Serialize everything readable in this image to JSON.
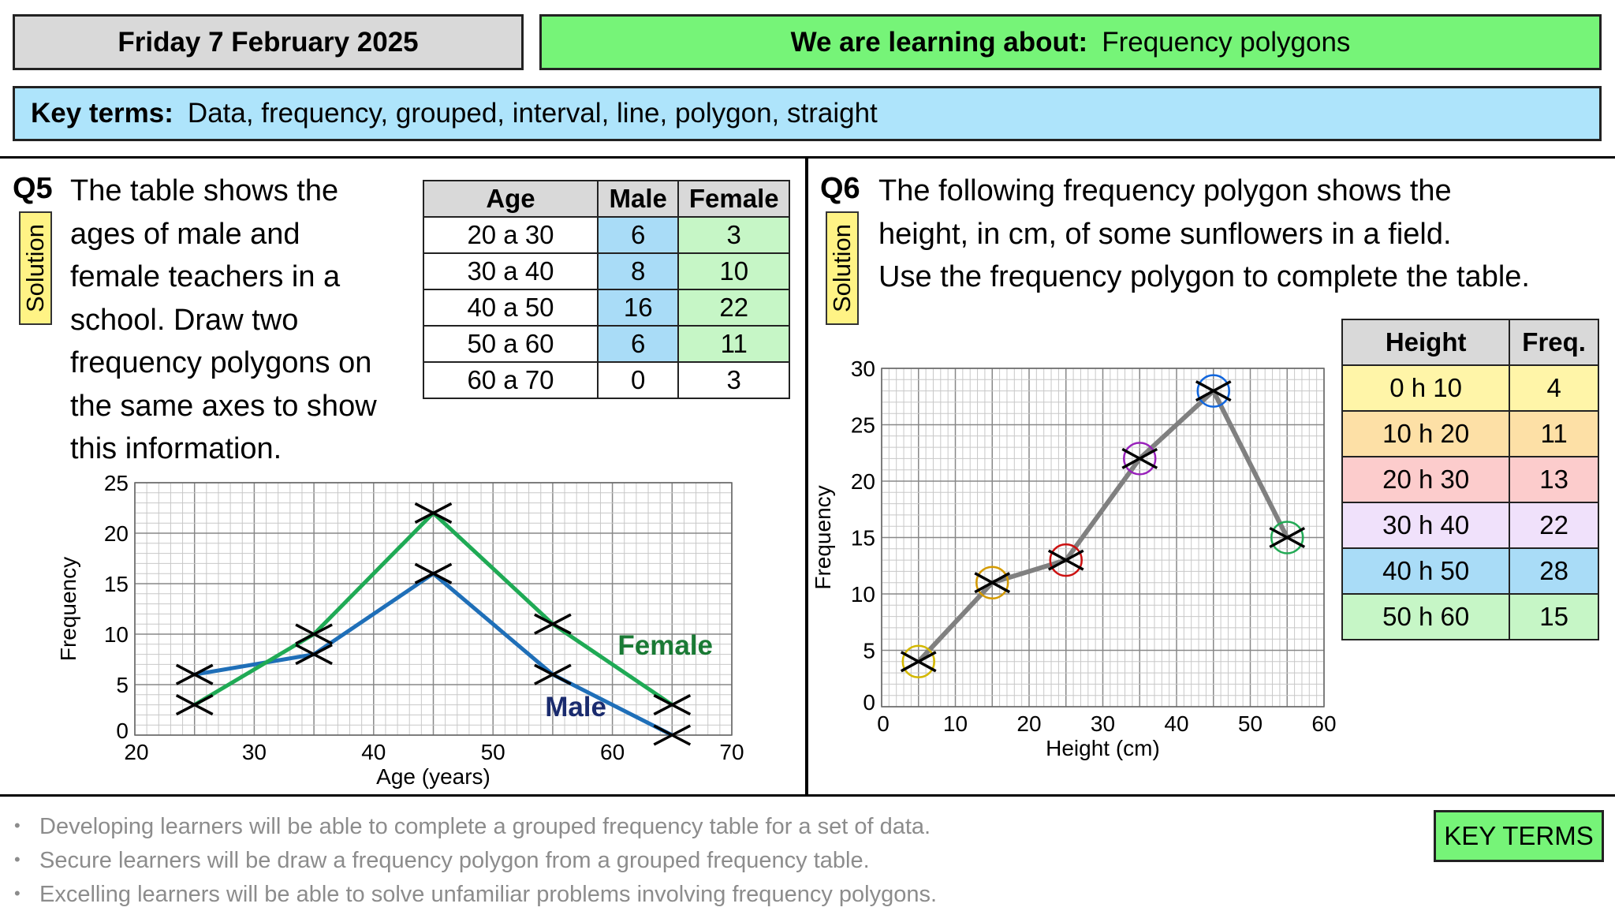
{
  "header": {
    "date": "Friday 7 February 2025",
    "topic_label": "We are learning about:",
    "topic": "Frequency polygons",
    "key_terms_label": "Key terms:",
    "key_terms": "Data, frequency, grouped, interval, line, polygon, straight"
  },
  "q5": {
    "number": "Q5",
    "solution_label": "Solution",
    "text_lines": [
      "The table shows the",
      "ages of male and",
      "female teachers in a",
      "school. Draw two",
      "frequency polygons on",
      "the same axes to show",
      "this information."
    ],
    "table": {
      "headers": [
        "Age",
        "Male",
        "Female"
      ],
      "rows": [
        {
          "age": "20  a  30",
          "male": "6",
          "female": "3"
        },
        {
          "age": "30  a  40",
          "male": "8",
          "female": "10"
        },
        {
          "age": "40  a  50",
          "male": "16",
          "female": "22"
        },
        {
          "age": "50  a  60",
          "male": "6",
          "female": "11"
        },
        {
          "age": "60  a  70",
          "male": "0",
          "female": "3"
        }
      ],
      "male_highlight": "#a9dcf7",
      "female_highlight": "#c6f6c6"
    }
  },
  "q6": {
    "number": "Q6",
    "solution_label": "Solution",
    "text_lines": [
      "The following frequency polygon shows the",
      "height, in cm, of some sunflowers in a field.",
      "Use the frequency polygon to complete the table."
    ],
    "table": {
      "headers": [
        "Height",
        "Freq."
      ],
      "rows": [
        {
          "height": "0  h  10",
          "freq": "4",
          "color": "#fff5a8"
        },
        {
          "height": "10  h  20",
          "freq": "11",
          "color": "#fde0a6"
        },
        {
          "height": "20  h  30",
          "freq": "13",
          "color": "#fccccc"
        },
        {
          "height": "30  h  40",
          "freq": "22",
          "color": "#f0e1fb"
        },
        {
          "height": "40  h  50",
          "freq": "28",
          "color": "#a9dcf7"
        },
        {
          "height": "50  h  60",
          "freq": "15",
          "color": "#c6f6c6"
        }
      ]
    }
  },
  "chart_data": [
    {
      "type": "line",
      "xlabel": "Age (years)",
      "ylabel": "Frequency",
      "xlim": [
        20,
        70
      ],
      "ylim": [
        0,
        25
      ],
      "x_ticks": [
        20,
        30,
        40,
        50,
        60,
        70
      ],
      "y_ticks": [
        0,
        5,
        10,
        15,
        20,
        25
      ],
      "grid": true,
      "x": [
        25,
        35,
        45,
        55,
        65
      ],
      "series": [
        {
          "name": "Male",
          "values": [
            6,
            8,
            16,
            6,
            0
          ],
          "color": "#1f6fb8",
          "label_color": "#1a2b6e"
        },
        {
          "name": "Female",
          "values": [
            3,
            10,
            22,
            11,
            3
          ],
          "color": "#1faa55",
          "label_color": "#1a7a35"
        }
      ]
    },
    {
      "type": "line",
      "xlabel": "Height (cm)",
      "ylabel": "Frequency",
      "xlim": [
        0,
        60
      ],
      "ylim": [
        0,
        30
      ],
      "x_ticks": [
        0,
        10,
        20,
        30,
        40,
        50,
        60
      ],
      "y_ticks": [
        0,
        5,
        10,
        15,
        20,
        25,
        30
      ],
      "grid": true,
      "x": [
        5,
        15,
        25,
        35,
        45,
        55
      ],
      "series": [
        {
          "values": [
            4,
            11,
            13,
            22,
            28,
            15
          ],
          "color": "#808080"
        }
      ],
      "marker_circle_colors": [
        "#d4b800",
        "#d49a00",
        "#cc1111",
        "#9922bb",
        "#1166dd",
        "#22aa55"
      ]
    }
  ],
  "objectives": [
    "Developing learners will be able to complete a grouped frequency table for a set of data.",
    "Secure learners will be draw a frequency polygon from a grouped frequency table.",
    "Excelling learners will be able to solve unfamiliar problems involving frequency polygons."
  ],
  "key_terms_button": "KEY TERMS"
}
